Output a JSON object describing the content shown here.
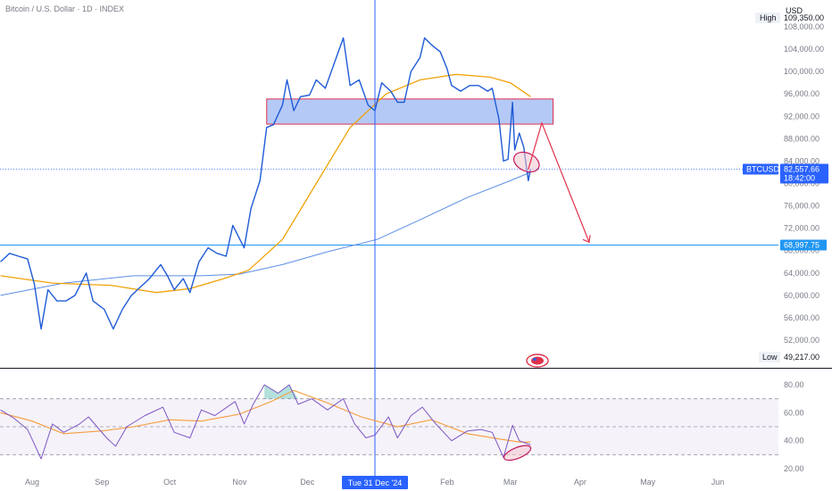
{
  "header": {
    "title": "Bitcoin / U.S. Dollar · 1D · INDEX",
    "currency": "USD"
  },
  "colors": {
    "price": "#1e5bd6",
    "ma_fast": "#f0a30a",
    "ma_slow": "#5b8ee6",
    "resistance_fill": "#a8bff4",
    "resistance_border": "#e0314b",
    "arrow": "#e0314b",
    "rsi": "#7e57c2",
    "rsi_ma": "#f59c3d",
    "accent": "#2962ff"
  },
  "chart_data": [
    {
      "type": "line",
      "name": "price-pane",
      "ylim": [
        48000,
        110000
      ],
      "y_ticks": [
        52000,
        56000,
        60000,
        64000,
        68000,
        72000,
        76000,
        80000,
        84000,
        88000,
        92000,
        96000,
        100000,
        104000,
        108000
      ],
      "y_tick_labels": [
        "52,000.00",
        "56,000.00",
        "60,000.00",
        "64,000.00",
        "68,000.00",
        "72,000.00",
        "76,000.00",
        "80,000.00",
        "84,000.00",
        "88,000.00",
        "92,000.00",
        "96,000.00",
        "100,000.00",
        "104,000.00",
        "108,000.00"
      ],
      "x_labels": [
        "Aug",
        "Sep",
        "Oct",
        "Nov",
        "Dec",
        "Feb",
        "Mar",
        "Apr",
        "May",
        "Jun"
      ],
      "x_label_dates": [
        "2024-08-01",
        "2024-09-01",
        "2024-10-01",
        "2024-11-01",
        "2024-12-01",
        "2025-02-01",
        "2025-03-01",
        "2025-04-01",
        "2025-05-01",
        "2025-06-01"
      ],
      "crosshair_date": "2024-12-31",
      "crosshair_label": "Tue 31 Dec '24",
      "series": [
        {
          "key": "price",
          "points": [
            [
              "2024-07-18",
              66000
            ],
            [
              "2024-07-22",
              67500
            ],
            [
              "2024-07-26",
              67000
            ],
            [
              "2024-07-30",
              66500
            ],
            [
              "2024-08-02",
              62000
            ],
            [
              "2024-08-05",
              54000
            ],
            [
              "2024-08-08",
              61000
            ],
            [
              "2024-08-12",
              59000
            ],
            [
              "2024-08-16",
              59000
            ],
            [
              "2024-08-20",
              60000
            ],
            [
              "2024-08-25",
              64000
            ],
            [
              "2024-08-28",
              59000
            ],
            [
              "2024-09-02",
              57500
            ],
            [
              "2024-09-06",
              54000
            ],
            [
              "2024-09-10",
              57500
            ],
            [
              "2024-09-14",
              60000
            ],
            [
              "2024-09-18",
              61500
            ],
            [
              "2024-09-22",
              63000
            ],
            [
              "2024-09-27",
              65500
            ],
            [
              "2024-09-30",
              63500
            ],
            [
              "2024-10-03",
              61000
            ],
            [
              "2024-10-07",
              63000
            ],
            [
              "2024-10-10",
              60500
            ],
            [
              "2024-10-14",
              66000
            ],
            [
              "2024-10-18",
              68500
            ],
            [
              "2024-10-22",
              67500
            ],
            [
              "2024-10-26",
              67000
            ],
            [
              "2024-10-29",
              72500
            ],
            [
              "2024-11-03",
              68500
            ],
            [
              "2024-11-06",
              75500
            ],
            [
              "2024-11-10",
              80500
            ],
            [
              "2024-11-13",
              90000
            ],
            [
              "2024-11-16",
              90500
            ],
            [
              "2024-11-20",
              94000
            ],
            [
              "2024-11-22",
              98500
            ],
            [
              "2024-11-25",
              93000
            ],
            [
              "2024-11-28",
              95500
            ],
            [
              "2024-12-02",
              95800
            ],
            [
              "2024-12-05",
              98500
            ],
            [
              "2024-12-09",
              97000
            ],
            [
              "2024-12-13",
              101500
            ],
            [
              "2024-12-17",
              106000
            ],
            [
              "2024-12-20",
              97500
            ],
            [
              "2024-12-24",
              98500
            ],
            [
              "2024-12-28",
              94000
            ],
            [
              "2024-12-31",
              93000
            ],
            [
              "2025-01-03",
              98000
            ],
            [
              "2025-01-07",
              96500
            ],
            [
              "2025-01-10",
              94500
            ],
            [
              "2025-01-13",
              94500
            ],
            [
              "2025-01-16",
              100000
            ],
            [
              "2025-01-20",
              102500
            ],
            [
              "2025-01-22",
              106000
            ],
            [
              "2025-01-25",
              104800
            ],
            [
              "2025-01-29",
              103500
            ],
            [
              "2025-02-01",
              100500
            ],
            [
              "2025-02-03",
              97500
            ],
            [
              "2025-02-07",
              96500
            ],
            [
              "2025-02-11",
              97500
            ],
            [
              "2025-02-15",
              97500
            ],
            [
              "2025-02-19",
              96500
            ],
            [
              "2025-02-21",
              97000
            ],
            [
              "2025-02-24",
              91500
            ],
            [
              "2025-02-26",
              84000
            ],
            [
              "2025-02-28",
              84300
            ],
            [
              "2025-03-02",
              94500
            ],
            [
              "2025-03-03",
              86000
            ],
            [
              "2025-03-05",
              89000
            ],
            [
              "2025-03-07",
              86500
            ],
            [
              "2025-03-09",
              80500
            ],
            [
              "2025-03-10",
              82500
            ]
          ]
        },
        {
          "key": "ma_fast",
          "points": [
            [
              "2024-07-18",
              63500
            ],
            [
              "2024-08-10",
              62200
            ],
            [
              "2024-09-05",
              61800
            ],
            [
              "2024-09-25",
              60500
            ],
            [
              "2024-10-10",
              61200
            ],
            [
              "2024-10-25",
              63000
            ],
            [
              "2024-11-05",
              64500
            ],
            [
              "2024-11-20",
              70000
            ],
            [
              "2024-12-05",
              80000
            ],
            [
              "2024-12-20",
              90000
            ],
            [
              "2025-01-05",
              96000
            ],
            [
              "2025-01-20",
              98500
            ],
            [
              "2025-02-05",
              99500
            ],
            [
              "2025-02-20",
              99000
            ],
            [
              "2025-03-01",
              98000
            ],
            [
              "2025-03-10",
              95500
            ]
          ]
        },
        {
          "key": "ma_slow",
          "points": [
            [
              "2024-07-18",
              60000
            ],
            [
              "2024-08-15",
              62200
            ],
            [
              "2024-09-15",
              63500
            ],
            [
              "2024-10-15",
              63500
            ],
            [
              "2024-11-01",
              63800
            ],
            [
              "2024-11-20",
              65500
            ],
            [
              "2024-12-10",
              67800
            ],
            [
              "2025-01-01",
              70000
            ],
            [
              "2025-01-20",
              73500
            ],
            [
              "2025-02-10",
              77500
            ],
            [
              "2025-03-01",
              80500
            ],
            [
              "2025-03-10",
              82000
            ]
          ]
        }
      ],
      "resistance_zone": {
        "x1": "2024-11-13",
        "x2": "2025-03-20",
        "y_low": 90600,
        "y_high": 95100
      },
      "projection_arrow": [
        [
          "2025-03-09",
          82500
        ],
        [
          "2025-03-15",
          90800
        ],
        [
          "2025-04-05",
          69500
        ]
      ],
      "highlight_ellipse": {
        "date": "2025-03-09",
        "value": 83500
      },
      "horizontal_line": {
        "value": 68997.75,
        "label": "68,997.75"
      },
      "last_price": {
        "value": 82557.66,
        "label": "82,557.66",
        "time": "18:42:00",
        "symbol": "BTCUSD"
      },
      "high": {
        "label": "High",
        "value_text": "109,350.00"
      },
      "low": {
        "label": "Low",
        "value_text": "49,217.00"
      }
    },
    {
      "type": "line",
      "name": "rsi-pane",
      "ylim": [
        15,
        87
      ],
      "y_ticks": [
        20,
        40,
        60,
        80
      ],
      "y_tick_labels": [
        "20.00",
        "40.00",
        "60.00",
        "80.00"
      ],
      "bands": {
        "upper": 70,
        "middle": 50,
        "lower": 30
      },
      "series": [
        {
          "key": "rsi",
          "points": [
            [
              "2024-07-18",
              62
            ],
            [
              "2024-07-24",
              56
            ],
            [
              "2024-07-30",
              48
            ],
            [
              "2024-08-05",
              27
            ],
            [
              "2024-08-10",
              52
            ],
            [
              "2024-08-15",
              46
            ],
            [
              "2024-08-22",
              52
            ],
            [
              "2024-08-26",
              57
            ],
            [
              "2024-09-03",
              42
            ],
            [
              "2024-09-07",
              36
            ],
            [
              "2024-09-12",
              50
            ],
            [
              "2024-09-20",
              58
            ],
            [
              "2024-09-28",
              64
            ],
            [
              "2024-10-03",
              46
            ],
            [
              "2024-10-10",
              42
            ],
            [
              "2024-10-15",
              62
            ],
            [
              "2024-10-21",
              58
            ],
            [
              "2024-10-30",
              68
            ],
            [
              "2024-11-03",
              52
            ],
            [
              "2024-11-07",
              66
            ],
            [
              "2024-11-12",
              80
            ],
            [
              "2024-11-18",
              74
            ],
            [
              "2024-11-23",
              80
            ],
            [
              "2024-11-27",
              66
            ],
            [
              "2024-12-03",
              70
            ],
            [
              "2024-12-10",
              62
            ],
            [
              "2024-12-17",
              70
            ],
            [
              "2024-12-22",
              52
            ],
            [
              "2024-12-27",
              42
            ],
            [
              "2024-12-31",
              44
            ],
            [
              "2025-01-06",
              57
            ],
            [
              "2025-01-10",
              42
            ],
            [
              "2025-01-16",
              58
            ],
            [
              "2025-01-21",
              64
            ],
            [
              "2025-01-27",
              52
            ],
            [
              "2025-02-03",
              40
            ],
            [
              "2025-02-10",
              47
            ],
            [
              "2025-02-16",
              48
            ],
            [
              "2025-02-21",
              46
            ],
            [
              "2025-02-26",
              28
            ],
            [
              "2025-03-02",
              51
            ],
            [
              "2025-03-05",
              40
            ],
            [
              "2025-03-10",
              37
            ]
          ]
        },
        {
          "key": "rsi_ma",
          "points": [
            [
              "2024-07-18",
              60
            ],
            [
              "2024-08-01",
              54
            ],
            [
              "2024-08-15",
              45
            ],
            [
              "2024-09-01",
              47
            ],
            [
              "2024-09-15",
              50
            ],
            [
              "2024-10-01",
              55
            ],
            [
              "2024-10-15",
              54
            ],
            [
              "2024-11-01",
              59
            ],
            [
              "2024-11-15",
              68
            ],
            [
              "2024-11-25",
              76
            ],
            [
              "2024-12-10",
              67
            ],
            [
              "2024-12-25",
              57
            ],
            [
              "2025-01-10",
              50
            ],
            [
              "2025-01-25",
              55
            ],
            [
              "2025-02-10",
              45
            ],
            [
              "2025-02-25",
              41
            ],
            [
              "2025-03-05",
              39
            ],
            [
              "2025-03-10",
              39
            ]
          ]
        }
      ],
      "highlight_ellipse": {
        "date": "2025-03-01",
        "value": 30
      }
    }
  ]
}
